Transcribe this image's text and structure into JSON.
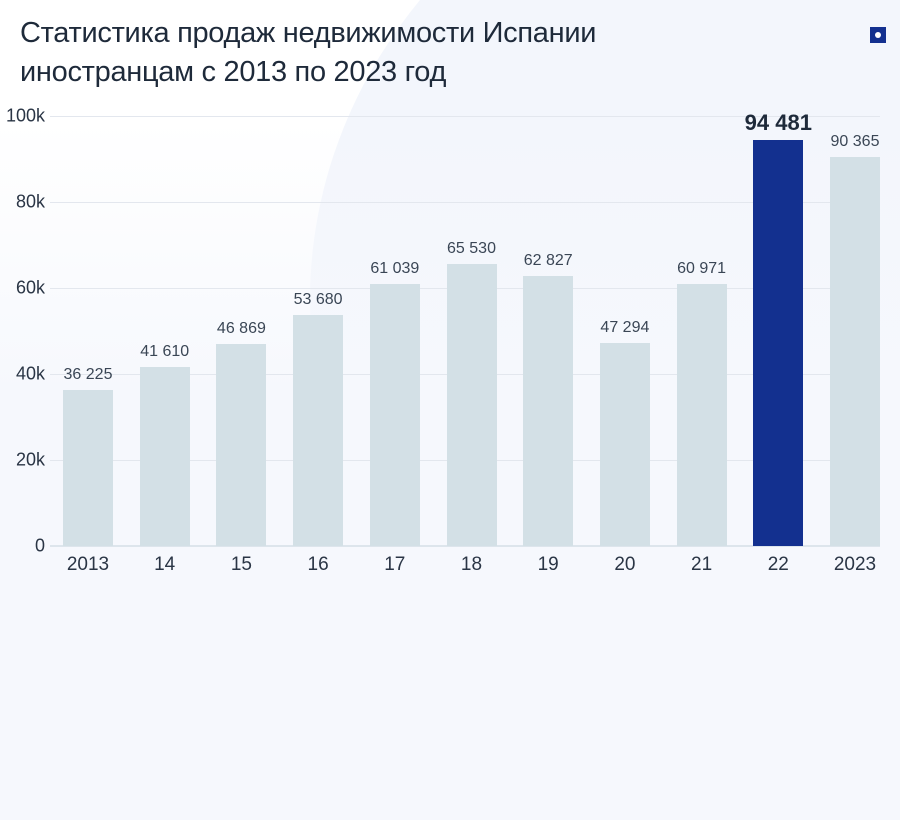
{
  "title": {
    "line1": "Статистика продаж недвижимости Испании",
    "line2": "иностранцам с 2013 по 2023 год"
  },
  "logo": {
    "icon": "brand-logo-square-dot",
    "color": "#13308f"
  },
  "colors": {
    "bar": "#d3e0e6",
    "highlight_bar": "#13308f",
    "background": "#f6f8fd"
  },
  "chart_data": {
    "type": "bar",
    "title": "Статистика продаж недвижимости Испании иностранцам с 2013 по 2023 год",
    "xlabel": "",
    "ylabel": "",
    "categories": [
      "2013",
      "14",
      "15",
      "16",
      "17",
      "18",
      "19",
      "20",
      "21",
      "22",
      "2023"
    ],
    "values": [
      36225,
      41610,
      46869,
      53680,
      61039,
      65530,
      62827,
      47294,
      60971,
      94481,
      90365
    ],
    "value_labels": [
      "36 225",
      "41 610",
      "46 869",
      "53 680",
      "61 039",
      "65 530",
      "62 827",
      "47 294",
      "60 971",
      "94 481",
      "90 365"
    ],
    "highlight_index": 9,
    "ylim": [
      0,
      100000
    ],
    "yticks": [
      "0",
      "20k",
      "40k",
      "60k",
      "80k",
      "100k"
    ],
    "ytick_values": [
      0,
      20000,
      40000,
      60000,
      80000,
      100000
    ],
    "grid": true,
    "legend": null
  }
}
